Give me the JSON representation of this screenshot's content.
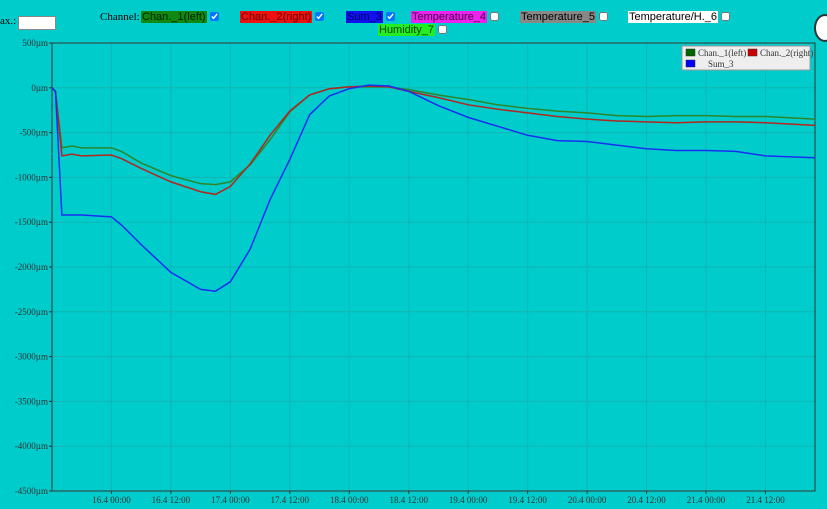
{
  "toolbar": {
    "max_label": "ax.:",
    "channel_label": "Channel:",
    "channels": [
      {
        "name": "Chan._1(left)",
        "color": "#118811",
        "text_color": "#002200",
        "checked": true
      },
      {
        "name": "Chan._2(right)",
        "color": "#ee1111",
        "text_color": "#660000",
        "checked": true
      },
      {
        "name": "Sum_3",
        "color": "#1111ee",
        "text_color": "#000066",
        "checked": true
      },
      {
        "name": "Temperature_4",
        "color": "#ee22ee",
        "text_color": "#440044",
        "checked": false
      },
      {
        "name": "Temperature_5",
        "color": "#888888",
        "text_color": "#000000",
        "checked": false
      },
      {
        "name": "Temperature/H._6",
        "color": "#ffffff",
        "text_color": "#000000",
        "checked": false
      },
      {
        "name": "Humidity_7",
        "color": "#22ee22",
        "text_color": "#004400",
        "checked": false
      }
    ]
  },
  "chart_data": {
    "type": "line",
    "grid": true,
    "legend": "top-right",
    "x": [
      0,
      0.7,
      2,
      4,
      6,
      12,
      14,
      18,
      24,
      30,
      33,
      36,
      40,
      44,
      48,
      52,
      56,
      60,
      64,
      68,
      72,
      78,
      84,
      90,
      96,
      102,
      108,
      114,
      120,
      126,
      132,
      138,
      144,
      154
    ],
    "xlim": [
      0,
      154
    ],
    "xticks": [
      {
        "value": 12,
        "label": "16.4 00:00"
      },
      {
        "value": 24,
        "label": "16.4 12:00"
      },
      {
        "value": 36,
        "label": "17.4 00:00"
      },
      {
        "value": 48,
        "label": "17.4 12:00"
      },
      {
        "value": 60,
        "label": "18.4 00:00"
      },
      {
        "value": 72,
        "label": "18.4 12:00"
      },
      {
        "value": 84,
        "label": "19.4 00:00"
      },
      {
        "value": 96,
        "label": "19.4 12:00"
      },
      {
        "value": 108,
        "label": "20.4 00:00"
      },
      {
        "value": 120,
        "label": "20.4 12:00"
      },
      {
        "value": 132,
        "label": "21.4 00:00"
      },
      {
        "value": 144,
        "label": "21.4 12:00"
      }
    ],
    "ylim": [
      -4500,
      500
    ],
    "yticks": [
      {
        "value": 500,
        "label": "500µm"
      },
      {
        "value": 0,
        "label": "0µm"
      },
      {
        "value": -500,
        "label": "-500µm"
      },
      {
        "value": -1000,
        "label": "-1000µm"
      },
      {
        "value": -1500,
        "label": "-1500µm"
      },
      {
        "value": -2000,
        "label": "-2000µm"
      },
      {
        "value": -2500,
        "label": "-2500µm"
      },
      {
        "value": -3000,
        "label": "-3000µm"
      },
      {
        "value": -3500,
        "label": "-3500µm"
      },
      {
        "value": -4000,
        "label": "-4000µm"
      },
      {
        "value": -4500,
        "label": "-4500µm"
      }
    ],
    "series": [
      {
        "name": "Chan._1(left)",
        "color": "#2a862a",
        "legend_color": "#006600",
        "values": [
          0,
          -45,
          -670,
          -650,
          -670,
          -670,
          -710,
          -840,
          -980,
          -1070,
          -1080,
          -1050,
          -860,
          -580,
          -270,
          -80,
          -10,
          10,
          10,
          10,
          -20,
          -80,
          -130,
          -190,
          -230,
          -260,
          -280,
          -310,
          -320,
          -310,
          -310,
          -320,
          -320,
          -350
        ]
      },
      {
        "name": "Chan._2(right)",
        "color": "#b3261e",
        "legend_color": "#cc0000",
        "values": [
          0,
          -40,
          -760,
          -740,
          -760,
          -750,
          -790,
          -900,
          -1050,
          -1160,
          -1190,
          -1100,
          -850,
          -530,
          -260,
          -80,
          -10,
          10,
          20,
          10,
          -40,
          -110,
          -190,
          -240,
          -280,
          -320,
          -350,
          -370,
          -380,
          -390,
          -380,
          -380,
          -390,
          -420
        ]
      },
      {
        "name": "Sum_3",
        "color": "#1a2ef0",
        "legend_color": "#0000ff",
        "values": [
          0,
          -40,
          -1420,
          -1420,
          -1420,
          -1440,
          -1530,
          -1750,
          -2060,
          -2250,
          -2270,
          -2165,
          -1800,
          -1250,
          -800,
          -300,
          -90,
          -10,
          30,
          20,
          -40,
          -200,
          -330,
          -430,
          -530,
          -590,
          -600,
          -640,
          -680,
          -700,
          -700,
          -710,
          -760,
          -780
        ]
      }
    ]
  }
}
